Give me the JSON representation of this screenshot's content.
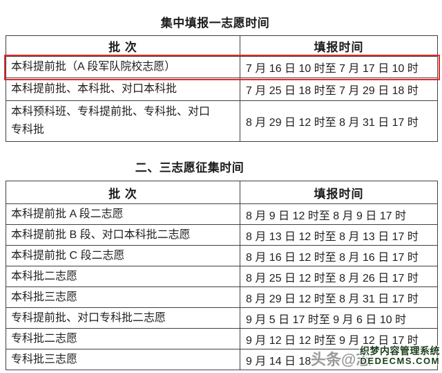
{
  "colors": {
    "highlight": "#e12a2a",
    "border": "#3f3f3f",
    "text": "#1e1e1e",
    "watermark_green": "#1a3d1a",
    "watermark_grey": "#9a9a9a"
  },
  "tables": [
    {
      "title": "集中填报一志愿时间",
      "headers": {
        "batch": "批 次",
        "time": "填报时间"
      },
      "rows": [
        {
          "batch": "本科提前批（A 段军队院校志愿）",
          "time": "7 月 16 日 10 时至 7 月 17 日 10 时",
          "highlighted": true
        },
        {
          "batch": "本科提前批、本科批、对口本科批",
          "time": "7 月 25 日 18 时至 7 月 29 日 18 时",
          "highlighted": false
        },
        {
          "batch": "本科预科班、专科提前批、专科批、对口\n专科批",
          "time": "8 月 29 日 12 时至 8 月 31 日 17 时",
          "highlighted": false
        }
      ]
    },
    {
      "title": "二、三志愿征集时间",
      "headers": {
        "batch": "批 次",
        "time": "填报时间"
      },
      "rows": [
        {
          "batch": "本科提前批 A 段二志愿",
          "time": "8 月 9 日 12 时至 8 月 9 日 17 时"
        },
        {
          "batch": "本科提前批 B 段、对口本科批二志愿",
          "time": "8 月 13 日 12 时至 8 月 13 日 17 时"
        },
        {
          "batch": "本科提前批 C 段二志愿",
          "time": "8 月 16 日 12 时至 8 月 16 日 17 时"
        },
        {
          "batch": "本科批二志愿",
          "time": "8 月 25 日 12 时至 8 月 26 日 17 时"
        },
        {
          "batch": "本科批三志愿",
          "time": "8 月 29 日 12 时至 8 月 31 日 17 时"
        },
        {
          "batch": "专科提前批、对口专科批二志愿",
          "time": "9 月 5 日 17 时至 9 月 6 日 10 时"
        },
        {
          "batch": "专科批二志愿",
          "time": "9 月 12 日 12 时至 9 月 12 日 17 时"
        },
        {
          "batch": "专科批三志愿",
          "time": "9 月 14 日 18"
        }
      ]
    }
  ],
  "watermarks": {
    "toutiao": "头条@志",
    "cms_line1": "织梦内容管理系统",
    "cms_line2": "DEDECMS.COM"
  }
}
